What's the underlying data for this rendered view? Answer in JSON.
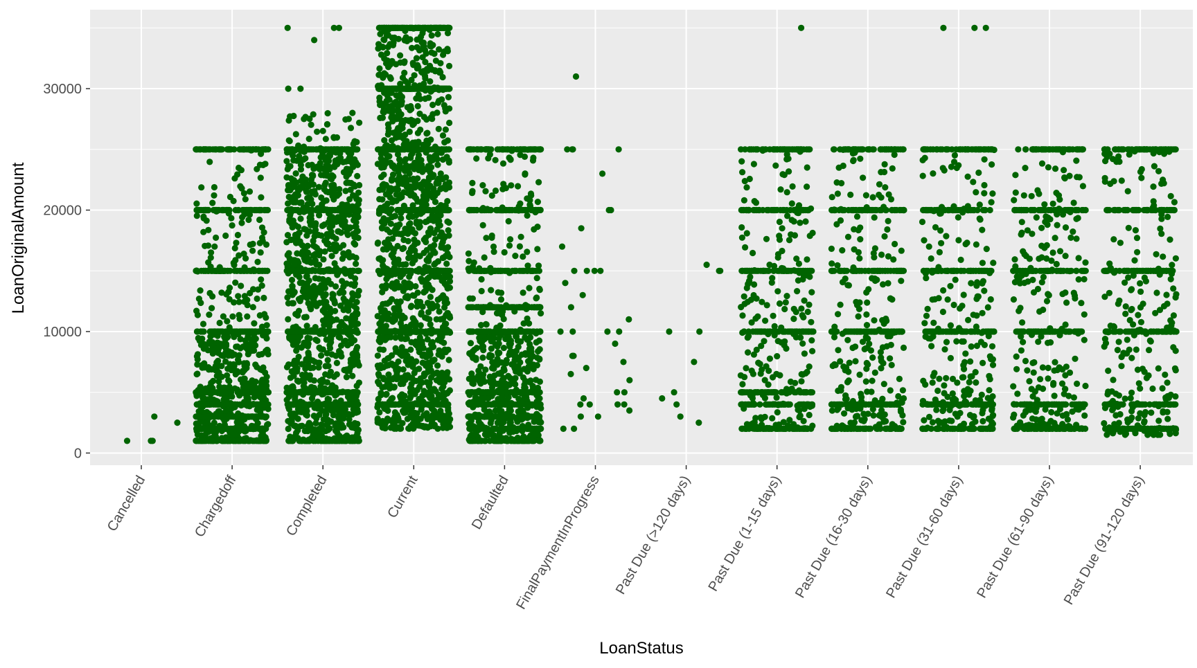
{
  "chart_data": {
    "type": "scatter",
    "title": "",
    "xlabel": "LoanStatus",
    "ylabel": "LoanOriginalAmount",
    "ylim": [
      -1000,
      36500
    ],
    "yticks": [
      0,
      10000,
      20000,
      30000
    ],
    "ytick_labels": [
      "0",
      "10000",
      "20000",
      "30000"
    ],
    "grid": true,
    "legend": "none",
    "point_color": "#006400",
    "panel_color": "#EBEBEB",
    "grid_color": "#FFFFFF",
    "categories": [
      "Cancelled",
      "Chargedoff",
      "Completed",
      "Current",
      "Defaulted",
      "FinalPaymentInProgress",
      "Past Due (>120 days)",
      "Past Due (1-15 days)",
      "Past Due (16-30 days)",
      "Past Due (31-60 days)",
      "Past Due (61-90 days)",
      "Past Due (91-120 days)"
    ],
    "jitter_width": 0.4,
    "series": [
      {
        "category": "Cancelled",
        "values": [
          1000,
          1000,
          1000,
          2500,
          3000
        ]
      },
      {
        "category": "Chargedoff",
        "range": [
          1000,
          25000
        ],
        "dense_band": [
          1000,
          10000
        ],
        "common_values": [
          1000,
          2000,
          3000,
          4000,
          5000,
          10000,
          15000,
          20000,
          25000
        ]
      },
      {
        "category": "Completed",
        "range": [
          1000,
          35000
        ],
        "dense_band": [
          1000,
          25000
        ],
        "common_values": [
          1000,
          4000,
          5000,
          10000,
          15000,
          20000,
          25000
        ],
        "high_values": [
          26000,
          27500,
          28000,
          30000,
          30000,
          34000,
          35000,
          35000,
          35000
        ]
      },
      {
        "category": "Current",
        "range": [
          2000,
          35000
        ],
        "dense_band": [
          2000,
          25000
        ],
        "common_values": [
          4000,
          10000,
          15000,
          20000,
          25000,
          30000,
          35000
        ]
      },
      {
        "category": "Defaulted",
        "range": [
          1000,
          25000
        ],
        "dense_band": [
          1000,
          10000
        ],
        "common_values": [
          1000,
          2000,
          3000,
          4000,
          5000,
          10000,
          12000,
          15000,
          20000,
          25000
        ]
      },
      {
        "category": "FinalPaymentInProgress",
        "values": [
          2000,
          2000,
          3000,
          3000,
          3500,
          4000,
          4000,
          4000,
          4000,
          4500,
          5000,
          5000,
          6000,
          6500,
          7000,
          7500,
          8000,
          8000,
          9000,
          10000,
          10000,
          10000,
          10000,
          11000,
          12000,
          13000,
          14000,
          15000,
          15000,
          15000,
          15000,
          17000,
          18500,
          20000,
          20000,
          23000,
          25000,
          25000,
          25000,
          25000,
          31000
        ]
      },
      {
        "category": "Past Due (>120 days)",
        "values": [
          2500,
          3000,
          4000,
          4500,
          5000,
          7500,
          10000,
          10000,
          15000,
          15000,
          15500
        ]
      },
      {
        "category": "Past Due (1-15 days)",
        "range": [
          2000,
          35000
        ],
        "common_values": [
          2000,
          4000,
          5000,
          10000,
          15000,
          20000,
          25000
        ],
        "high_values": [
          35000
        ]
      },
      {
        "category": "Past Due (16-30 days)",
        "range": [
          2000,
          25000
        ],
        "common_values": [
          2000,
          4000,
          10000,
          15000,
          20000,
          25000
        ]
      },
      {
        "category": "Past Due (31-60 days)",
        "range": [
          2000,
          35000
        ],
        "common_values": [
          2000,
          4000,
          10000,
          15000,
          20000,
          25000
        ],
        "high_values": [
          35000,
          35000,
          35000
        ]
      },
      {
        "category": "Past Due (61-90 days)",
        "range": [
          2000,
          25000
        ],
        "common_values": [
          2000,
          4000,
          10000,
          15000,
          20000,
          25000
        ]
      },
      {
        "category": "Past Due (91-120 days)",
        "range": [
          1500,
          25000
        ],
        "common_values": [
          2000,
          4000,
          10000,
          15000,
          20000,
          25000
        ]
      }
    ]
  }
}
